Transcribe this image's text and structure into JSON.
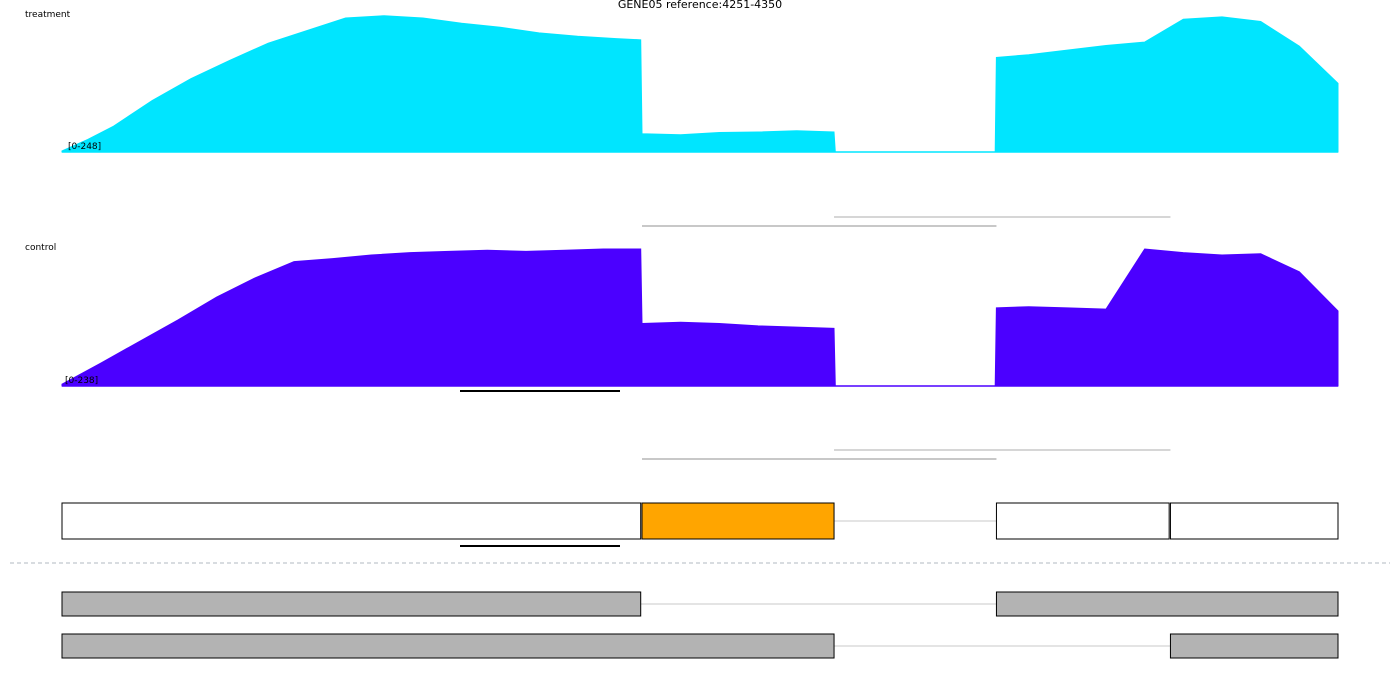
{
  "title": "GENE05 reference:4251-4350",
  "colors": {
    "treatment": "#00e5ff",
    "control": "#4b00ff",
    "highlight_exon": "#ffa500",
    "exon_outline": "#000000",
    "isoform_fill": "#b3b3b3",
    "junction": "#c8c8c8",
    "separator": "#b0b8c0"
  },
  "chart_data": {
    "type": "area",
    "x_range": [
      4251,
      4350
    ],
    "tracks": [
      {
        "name": "treatment",
        "range_label": "[0-248]",
        "ylim": [
          0,
          248
        ],
        "x": [
          4251,
          4253,
          4255,
          4258,
          4261,
          4264,
          4267,
          4270,
          4273,
          4276,
          4279,
          4282,
          4285,
          4288,
          4291,
          4294,
          4295.9,
          4296,
          4299,
          4302,
          4305,
          4308,
          4310.9,
          4311,
          4313,
          4316,
          4319,
          4322,
          4323.4,
          4323.5,
          4326,
          4329,
          4332,
          4335,
          4338,
          4341,
          4344,
          4347,
          4350
        ],
        "values": [
          2,
          22,
          45,
          90,
          128,
          160,
          190,
          212,
          234,
          238,
          234,
          225,
          218,
          208,
          202,
          198,
          196,
          32,
          30,
          34,
          35,
          37,
          35,
          0,
          0,
          0,
          0,
          0,
          0,
          165,
          170,
          178,
          186,
          192,
          232,
          236,
          228,
          185,
          120
        ]
      },
      {
        "name": "control",
        "range_label": "[0-238]",
        "ylim": [
          0,
          238
        ],
        "x": [
          4251,
          4254,
          4257,
          4260,
          4263,
          4266,
          4269,
          4272,
          4275,
          4278,
          4281,
          4284,
          4287,
          4290,
          4293,
          4295.9,
          4296,
          4299,
          4302,
          4305,
          4308,
          4310.9,
          4311,
          4313,
          4316,
          4319,
          4322,
          4323.4,
          4323.5,
          4326,
          4329,
          4332,
          4335,
          4338,
          4341,
          4344,
          4347,
          4350
        ],
        "values": [
          3,
          38,
          74,
          110,
          148,
          180,
          207,
          212,
          218,
          222,
          224,
          226,
          224,
          226,
          228,
          228,
          104,
          106,
          104,
          100,
          98,
          96,
          0,
          0,
          0,
          0,
          0,
          0,
          130,
          132,
          130,
          128,
          228,
          222,
          218,
          220,
          190,
          125
        ]
      }
    ]
  },
  "track_labels": {
    "treatment": "treatment",
    "control": "control"
  },
  "gene_model": {
    "exons": [
      {
        "start": 4251,
        "end": 4295.9,
        "highlight": false
      },
      {
        "start": 4296,
        "end": 4310.9,
        "highlight": true
      },
      {
        "start": 4323.5,
        "end": 4336.9,
        "highlight": false
      },
      {
        "start": 4337,
        "end": 4350,
        "highlight": false
      }
    ],
    "introns": [
      {
        "start": 4310.9,
        "end": 4323.5
      }
    ]
  },
  "junctions": [
    {
      "start": 4296,
      "end": 4323.5
    },
    {
      "start": 4310.9,
      "end": 4337
    }
  ],
  "isoforms": [
    {
      "exons": [
        {
          "start": 4251,
          "end": 4295.9
        },
        {
          "start": 4323.5,
          "end": 4350
        }
      ],
      "intron": {
        "start": 4295.9,
        "end": 4323.5
      }
    },
    {
      "exons": [
        {
          "start": 4251,
          "end": 4310.9
        },
        {
          "start": 4337,
          "end": 4350
        }
      ],
      "intron": {
        "start": 4310.9,
        "end": 4337
      }
    }
  ]
}
